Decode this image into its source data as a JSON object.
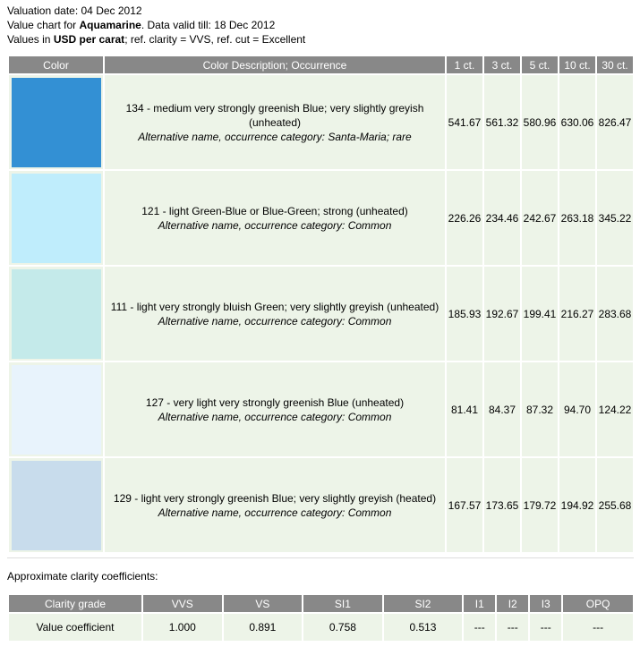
{
  "header": {
    "valuation_line": "Valuation date: 04 Dec 2012",
    "chart_prefix": "Value chart for ",
    "gem_name": "Aquamarine",
    "chart_suffix": ". Data valid till: 18 Dec 2012",
    "values_prefix": "Values in ",
    "currency_unit": "USD per carat",
    "values_suffix": "; ref. clarity = VVS, ref. cut = Excellent"
  },
  "table": {
    "headers": [
      "Color",
      "Color Description; Occurrence",
      "1 ct.",
      "3 ct.",
      "5 ct.",
      "10 ct.",
      "30 ct."
    ],
    "rows": [
      {
        "swatch_color": "#3390d4",
        "description": "134 - medium very strongly greenish Blue; very slightly greyish (unheated)",
        "occurrence": "Alternative name, occurrence category: Santa-Maria; rare",
        "prices": [
          "541.67",
          "561.32",
          "580.96",
          "630.06",
          "826.47"
        ]
      },
      {
        "swatch_color": "#bfedfc",
        "description": "121 - light Green-Blue or Blue-Green; strong (unheated)",
        "occurrence": "Alternative name, occurrence category: Common",
        "prices": [
          "226.26",
          "234.46",
          "242.67",
          "263.18",
          "345.22"
        ]
      },
      {
        "swatch_color": "#c4eaea",
        "description": "111 - light very strongly bluish Green; very slightly greyish (unheated)",
        "occurrence": "Alternative name, occurrence category: Common",
        "prices": [
          "185.93",
          "192.67",
          "199.41",
          "216.27",
          "283.68"
        ]
      },
      {
        "swatch_color": "#e8f3fc",
        "description": "127 - very light very strongly greenish Blue (unheated)",
        "occurrence": "Alternative name, occurrence category: Common",
        "prices": [
          "81.41",
          "84.37",
          "87.32",
          "94.70",
          "124.22"
        ]
      },
      {
        "swatch_color": "#c8dcec",
        "description": "129 - light very strongly greenish Blue; very slightly greyish (heated)",
        "occurrence": "Alternative name, occurrence category: Common",
        "prices": [
          "167.57",
          "173.65",
          "179.72",
          "194.92",
          "255.68"
        ]
      }
    ]
  },
  "clarity": {
    "title": "Approximate clarity coefficients:",
    "headers": [
      "Clarity grade",
      "VVS",
      "VS",
      "SI1",
      "SI2",
      "I1",
      "I2",
      "I3",
      "OPQ"
    ],
    "row_label": "Value coefficient",
    "values": [
      "1.000",
      "0.891",
      "0.758",
      "0.513",
      "---",
      "---",
      "---",
      "---"
    ]
  },
  "colors": {
    "header_bg": "#888888",
    "cell_bg": "#edf4e8"
  }
}
